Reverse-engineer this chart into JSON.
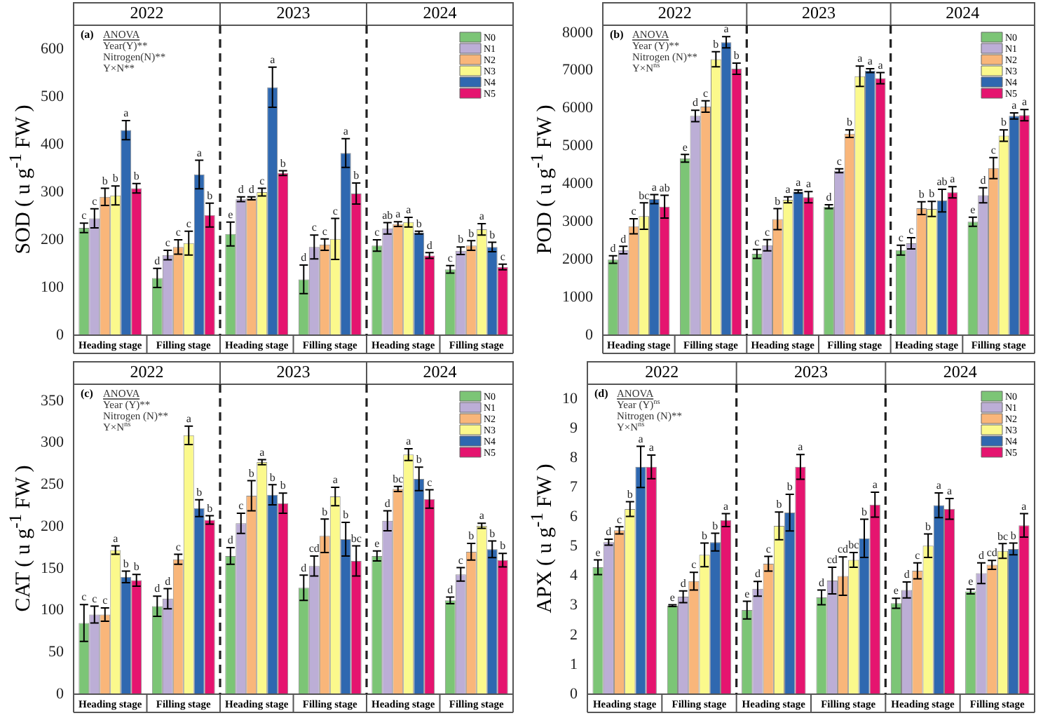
{
  "chart_data": [
    {
      "type": "bar",
      "title": "(a)",
      "ylabel": "SOD ( u g$^{-1}$ FW )",
      "categories": [
        "Heading stage",
        "Filling stage",
        "Heading stage",
        "Filling stage",
        "Heading stage",
        "Filling stage"
      ],
      "annotations": [
        "2022",
        "2023",
        "2024",
        "ANOVA",
        "Year(Y)**",
        "Nitrogen(N)**",
        "Y×N**"
      ],
      "ylim": [
        0,
        650
      ],
      "yticks": [
        0,
        100,
        200,
        300,
        400,
        500,
        600
      ],
      "legend": "top right",
      "series": [
        {
          "name": "N0",
          "color": "#7cc576",
          "values": [
            225,
            120,
            212,
            117,
            188,
            138
          ],
          "errors": [
            10,
            20,
            25,
            30,
            12,
            8
          ],
          "value_labels": [
            "c",
            "d",
            "e",
            "d",
            "c",
            "c"
          ]
        },
        {
          "name": "N1",
          "color": "#bcaed6",
          "values": [
            245,
            168,
            285,
            185,
            224,
            177
          ],
          "errors": [
            20,
            10,
            5,
            25,
            12,
            8
          ],
          "value_labels": [
            "c",
            "c",
            "d",
            "c",
            "ab",
            "b"
          ]
        },
        {
          "name": "N2",
          "color": "#f9b67a",
          "values": [
            290,
            185,
            287,
            190,
            233,
            188
          ],
          "errors": [
            18,
            15,
            3,
            12,
            5,
            10
          ],
          "value_labels": [
            "b",
            "c",
            "d",
            "c",
            "a",
            "b"
          ]
        },
        {
          "name": "N3",
          "color": "#fbf98c",
          "values": [
            293,
            193,
            300,
            202,
            237,
            222
          ],
          "errors": [
            20,
            25,
            8,
            43,
            10,
            12
          ],
          "value_labels": [
            "b",
            "c",
            "c",
            "c",
            "a",
            "a"
          ]
        },
        {
          "name": "N4",
          "color": "#2f68b0",
          "values": [
            430,
            337,
            520,
            382,
            215,
            185
          ],
          "errors": [
            20,
            30,
            42,
            30,
            3,
            10
          ],
          "value_labels": [
            "a",
            "a",
            "a",
            "a",
            "b",
            "b"
          ]
        },
        {
          "name": "N5",
          "color": "#e5146f",
          "values": [
            308,
            252,
            340,
            297,
            167,
            143
          ],
          "errors": [
            10,
            25,
            5,
            22,
            6,
            6
          ],
          "value_labels": [
            "b",
            "b",
            "b",
            "b",
            "d",
            "c"
          ]
        }
      ]
    },
    {
      "type": "bar",
      "title": "(b)",
      "ylabel": "POD ( u g$^{-1}$ FW )",
      "categories": [
        "Heading stage",
        "Filling stage",
        "Heading stage",
        "Filling stage",
        "Heading stage",
        "Filling stage"
      ],
      "annotations": [
        "2022",
        "2023",
        "2024",
        "ANOVA",
        "Year (Y)**",
        "Nitrogen (N)**",
        "Y×N$^{ns}$"
      ],
      "ylim": [
        0,
        8200
      ],
      "yticks": [
        0,
        1000,
        2000,
        3000,
        4000,
        5000,
        6000,
        7000,
        8000
      ],
      "legend": "top right",
      "series": [
        {
          "name": "N0",
          "color": "#7cc576",
          "values": [
            2000,
            4680,
            2150,
            3400,
            2250,
            3000
          ],
          "errors": [
            100,
            100,
            120,
            50,
            130,
            120
          ],
          "value_labels": [
            "d",
            "e",
            "c",
            "d",
            "c",
            "e"
          ]
        },
        {
          "name": "N1",
          "color": "#bcaed6",
          "values": [
            2250,
            5800,
            2380,
            4350,
            2430,
            3700
          ],
          "errors": [
            100,
            150,
            150,
            50,
            150,
            200
          ],
          "value_labels": [
            "d",
            "d",
            "c",
            "c",
            "c",
            "d"
          ]
        },
        {
          "name": "N2",
          "color": "#f9b67a",
          "values": [
            2880,
            6050,
            3070,
            5330,
            3360,
            4420
          ],
          "errors": [
            200,
            150,
            280,
            100,
            170,
            280
          ],
          "value_labels": [
            "c",
            "c",
            "b",
            "b",
            "b",
            "c"
          ]
        },
        {
          "name": "N3",
          "color": "#fbf98c",
          "values": [
            3150,
            7300,
            3580,
            6850,
            3340,
            5280
          ],
          "errors": [
            350,
            200,
            80,
            270,
            200,
            150
          ],
          "value_labels": [
            "bc",
            "b",
            "a",
            "a",
            "b",
            "b"
          ]
        },
        {
          "name": "N4",
          "color": "#2f68b0",
          "values": [
            3600,
            7750,
            3800,
            7000,
            3560,
            5800
          ],
          "errors": [
            120,
            150,
            40,
            50,
            300,
            80
          ],
          "value_labels": [
            "a",
            "a",
            "a",
            "a",
            "ab",
            "a"
          ]
        },
        {
          "name": "N5",
          "color": "#e5146f",
          "values": [
            3400,
            7050,
            3650,
            6800,
            3780,
            5820
          ],
          "errors": [
            300,
            150,
            150,
            150,
            150,
            150
          ],
          "value_labels": [
            "ab",
            "b",
            "a",
            "a",
            "a",
            "a"
          ]
        }
      ]
    },
    {
      "type": "bar",
      "title": "(c)",
      "ylabel": "CAT ( u g$^{-1}$ FW )",
      "categories": [
        "Heading stage",
        "Filling stage",
        "Heading stage",
        "Filling stage",
        "Heading stage",
        "Filling stage"
      ],
      "annotations": [
        "2022",
        "2023",
        "2024",
        "ANOVA",
        "Year (Y)**",
        "Nitrogen (N)**",
        "Y×N$^{ns}$"
      ],
      "ylim": [
        0,
        370
      ],
      "yticks": [
        0,
        50,
        100,
        150,
        200,
        250,
        300,
        350
      ],
      "legend": "top right",
      "series": [
        {
          "name": "N0",
          "color": "#7cc576",
          "values": [
            85,
            105,
            165,
            127,
            165,
            112
          ],
          "errors": [
            22,
            12,
            10,
            15,
            6,
            4
          ],
          "value_labels": [
            "c",
            "d",
            "d",
            "d",
            "e",
            "d"
          ]
        },
        {
          "name": "N1",
          "color": "#bcaed6",
          "values": [
            95,
            114,
            204,
            153,
            207,
            143
          ],
          "errors": [
            10,
            12,
            12,
            12,
            12,
            8
          ],
          "value_labels": [
            "c",
            "d",
            "c",
            "cd",
            "d",
            "c"
          ]
        },
        {
          "name": "N2",
          "color": "#f9b67a",
          "values": [
            95,
            161,
            237,
            189,
            245,
            170
          ],
          "errors": [
            8,
            6,
            18,
            20,
            3,
            10
          ],
          "value_labels": [
            "c",
            "c",
            "b",
            "b",
            "bc",
            "b"
          ]
        },
        {
          "name": "N3",
          "color": "#fbf98c",
          "values": [
            172,
            309,
            277,
            236,
            286,
            201
          ],
          "errors": [
            5,
            11,
            3,
            11,
            7,
            3
          ],
          "value_labels": [
            "a",
            "a",
            "a",
            "a",
            "a",
            "a"
          ]
        },
        {
          "name": "N4",
          "color": "#2f68b0",
          "values": [
            140,
            222,
            238,
            185,
            257,
            173
          ],
          "errors": [
            7,
            10,
            12,
            20,
            14,
            10
          ],
          "value_labels": [
            "b",
            "b",
            "b",
            "b",
            "b",
            "b"
          ]
        },
        {
          "name": "N5",
          "color": "#e5146f",
          "values": [
            136,
            208,
            228,
            159,
            233,
            160
          ],
          "errors": [
            7,
            5,
            12,
            18,
            11,
            8
          ],
          "value_labels": [
            "b",
            "b",
            "b",
            "bc",
            "c",
            "b"
          ]
        }
      ]
    },
    {
      "type": "bar",
      "title": "(d)",
      "ylabel": "APX ( u g$^{-1}$ FW )",
      "categories": [
        "Heading stage",
        "Filling stage",
        "Heading stage",
        "Filling stage",
        "Heading stage",
        "Filling stage"
      ],
      "annotations": [
        "2022",
        "2023",
        "2024",
        "ANOVA",
        "Year (Y)$^{ns}$",
        "Nitrogen (N)**",
        "Y×N$^{ns}$"
      ],
      "ylim": [
        0,
        10.5
      ],
      "yticks": [
        0,
        1,
        2,
        3,
        4,
        5,
        6,
        7,
        8,
        9,
        10
      ],
      "legend": "top right",
      "series": [
        {
          "name": "N0",
          "color": "#7cc576",
          "values": [
            4.3,
            3.0,
            2.85,
            3.28,
            3.08,
            3.48
          ],
          "errors": [
            0.25,
            0.03,
            0.3,
            0.25,
            0.17,
            0.08
          ],
          "value_labels": [
            "e",
            "e",
            "e",
            "d",
            "e",
            "e"
          ]
        },
        {
          "name": "N1",
          "color": "#bcaed6",
          "values": [
            5.15,
            3.3,
            3.57,
            3.85,
            3.53,
            4.1
          ],
          "errors": [
            0.1,
            0.2,
            0.25,
            0.45,
            0.27,
            0.35
          ],
          "value_labels": [
            "d",
            "d",
            "d",
            "cd",
            "d",
            "d"
          ]
        },
        {
          "name": "N2",
          "color": "#f9b67a",
          "values": [
            5.55,
            3.83,
            4.42,
            4.0,
            4.18,
            4.38
          ],
          "errors": [
            0.12,
            0.3,
            0.25,
            0.65,
            0.27,
            0.15
          ],
          "value_labels": [
            "c",
            "c",
            "c",
            "cd",
            "c",
            "cd"
          ]
        },
        {
          "name": "N3",
          "color": "#fbf98c",
          "values": [
            6.27,
            4.72,
            5.7,
            4.55,
            5.03,
            4.85
          ],
          "errors": [
            0.25,
            0.4,
            0.47,
            0.25,
            0.4,
            0.25
          ],
          "value_labels": [
            "b",
            "b",
            "b",
            "bc",
            "b",
            "bc"
          ]
        },
        {
          "name": "N4",
          "color": "#2f68b0",
          "values": [
            7.7,
            5.15,
            6.15,
            5.28,
            6.4,
            4.92
          ],
          "errors": [
            0.7,
            0.3,
            0.62,
            0.65,
            0.42,
            0.2
          ],
          "value_labels": [
            "a",
            "b",
            "b",
            "b",
            "a",
            "b"
          ]
        },
        {
          "name": "N5",
          "color": "#e5146f",
          "values": [
            7.7,
            5.9,
            7.7,
            6.42,
            6.28,
            5.72
          ],
          "errors": [
            0.4,
            0.22,
            0.42,
            0.42,
            0.35,
            0.4
          ],
          "value_labels": [
            "a",
            "a",
            "a",
            "a",
            "a",
            "a"
          ]
        }
      ]
    }
  ]
}
